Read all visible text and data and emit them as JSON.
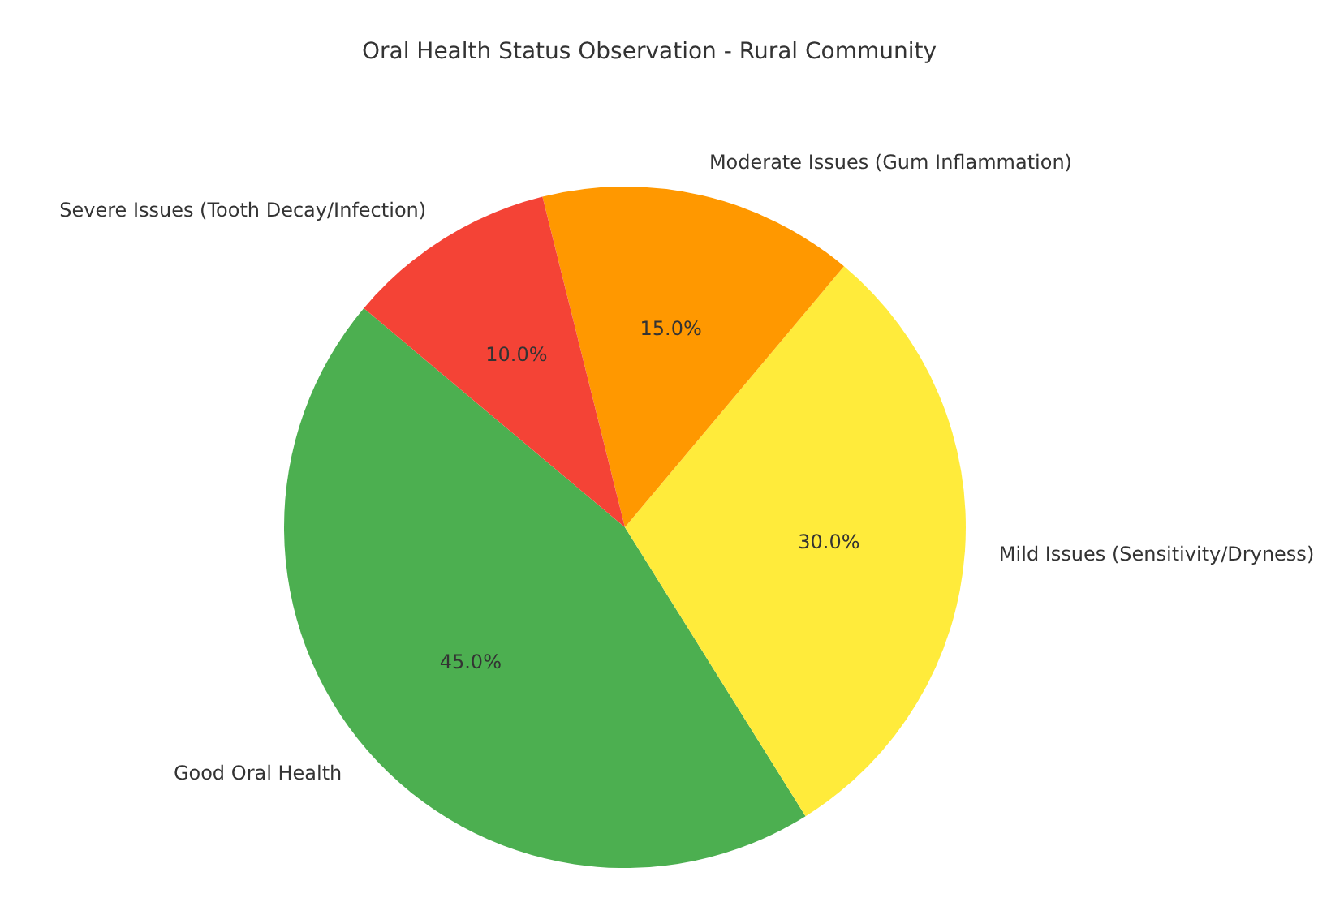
{
  "chart_data": {
    "type": "pie",
    "title": "Oral Health Status Observation - Rural Community",
    "categories": [
      "Good Oral Health",
      "Mild Issues (Sensitivity/Dryness)",
      "Moderate Issues (Gum Inflammation)",
      "Severe Issues (Tooth Decay/Infection)"
    ],
    "values": [
      45,
      30,
      15,
      10
    ],
    "colors": [
      "#4caf50",
      "#ffeb3b",
      "#ff9800",
      "#f44336"
    ],
    "value_labels": [
      "45.0%",
      "30.0%",
      "15.0%",
      "10.0%"
    ]
  }
}
